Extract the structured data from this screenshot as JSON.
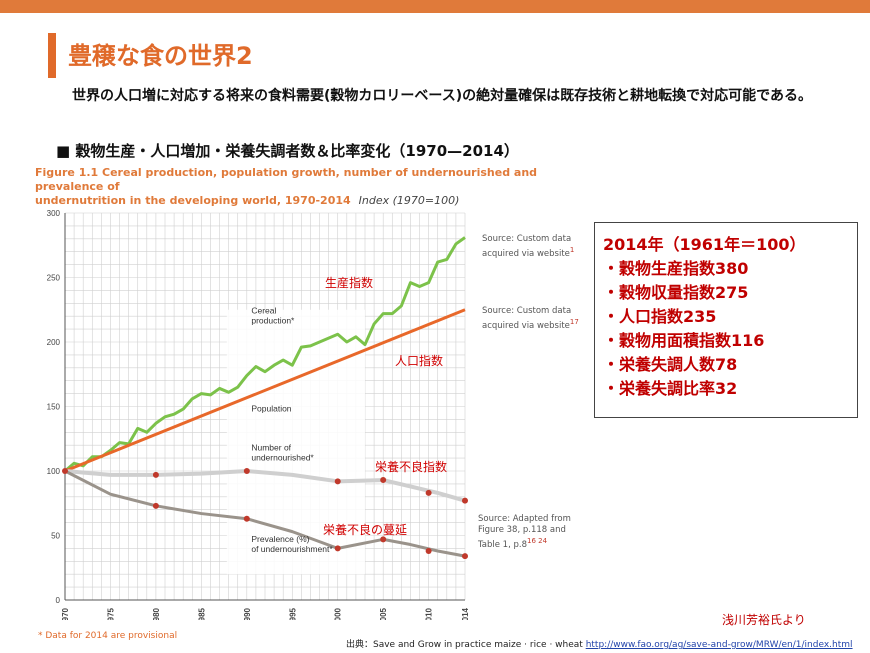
{
  "slide": {
    "title": "豊穣な食の世界2",
    "subtitle": "世界の人口増に対応する将来の食料需要(穀物カロリーベース)の絶対量確保は既存技術と耕地転換で対応可能である。",
    "section": "■ 穀物生産・人口増加・栄養失調者数＆比率変化（1970—2014）",
    "credit": "浅川芳裕氏より",
    "source_text": "出典：Save and Grow in practice maize · rice · wheat",
    "source_link": "http://www.fao.org/ag/save-and-grow/MRW/en/1/index.html"
  },
  "figure": {
    "title_line1": "Figure 1.1 Cereal production, population growth, number of undernourished and prevalence of",
    "title_line2": "undernutrition in the developing world, 1970-2014",
    "index_note": "Index (1970=100)",
    "footnote": "* Data for 2014 are provisional",
    "sources": [
      {
        "text": "Source: Custom data acquired via website",
        "sup": "1"
      },
      {
        "text": "Source: Custom data acquired via website",
        "sup": "17"
      },
      {
        "text": "Source: Adapted from Figure 38, p.118 and Table 1, p.8",
        "sup": "16 24"
      }
    ]
  },
  "jp_labels": {
    "production": "生産指数",
    "population": "人口指数",
    "undernourished": "栄養不良指数",
    "prevalence": "栄養不良の蔓延"
  },
  "summary_box": {
    "heading": "2014年（1961年＝100）",
    "items": [
      "・穀物生産指数380",
      "・穀物収量指数275",
      "・人口指数235",
      "・穀物用面積指数116",
      "・栄養失調人数78",
      "・栄養失調比率32"
    ]
  },
  "chart_data": {
    "type": "line",
    "title": "Cereal production, population growth, number of undernourished and prevalence of undernutrition in the developing world, 1970-2014",
    "ylabel": "Index (1970=100)",
    "xlim": [
      1970,
      2014
    ],
    "ylim": [
      0,
      300
    ],
    "x_ticks": [
      1970,
      1975,
      1980,
      1985,
      1990,
      1995,
      2000,
      2005,
      2010,
      2014
    ],
    "y_ticks": [
      0,
      50,
      100,
      150,
      200,
      250,
      300
    ],
    "grid": true,
    "series": [
      {
        "name": "Cereal production*",
        "color": "#7cc24a",
        "x": [
          1970,
          1971,
          1972,
          1973,
          1974,
          1975,
          1976,
          1977,
          1978,
          1979,
          1980,
          1981,
          1982,
          1983,
          1984,
          1985,
          1986,
          1987,
          1988,
          1989,
          1990,
          1991,
          1992,
          1993,
          1994,
          1995,
          1996,
          1997,
          1998,
          1999,
          2000,
          2001,
          2002,
          2003,
          2004,
          2005,
          2006,
          2007,
          2008,
          2009,
          2010,
          2011,
          2012,
          2013,
          2014
        ],
        "values": [
          100,
          106,
          104,
          111,
          111,
          116,
          122,
          121,
          133,
          130,
          137,
          142,
          144,
          148,
          156,
          160,
          159,
          164,
          161,
          165,
          174,
          181,
          177,
          182,
          186,
          182,
          196,
          197,
          200,
          203,
          206,
          200,
          204,
          198,
          214,
          222,
          222,
          228,
          246,
          243,
          246,
          262,
          264,
          276,
          281
        ]
      },
      {
        "name": "Population",
        "color": "#e8682a",
        "x": [
          1970,
          2014
        ],
        "values": [
          100,
          225
        ]
      },
      {
        "name": "Number of undernourished*",
        "color": "#cfcfcf",
        "x": [
          1970,
          1975,
          1980,
          1985,
          1990,
          1995,
          2000,
          2005,
          2008,
          2011,
          2014
        ],
        "values": [
          100,
          97,
          97,
          98,
          100,
          97,
          92,
          93,
          88,
          83,
          77
        ]
      },
      {
        "name": "Prevalence (%) of undernourishment*",
        "color": "#9a938b",
        "x": [
          1970,
          1975,
          1980,
          1985,
          1990,
          1995,
          2000,
          2005,
          2008,
          2011,
          2014
        ],
        "values": [
          100,
          82,
          73,
          67,
          63,
          53,
          40,
          47,
          43,
          38,
          34
        ]
      }
    ],
    "markers": [
      {
        "series": "Number of undernourished*",
        "x": [
          1970,
          1980,
          1990,
          2000,
          2005,
          2010,
          2014
        ],
        "values": [
          100,
          97,
          100,
          92,
          93,
          83,
          77
        ]
      },
      {
        "series": "Prevalence (%) of undernourishment*",
        "x": [
          1980,
          1990,
          2000,
          2005,
          2010,
          2014
        ],
        "values": [
          73,
          63,
          40,
          47,
          38,
          34
        ]
      }
    ],
    "legend": "inline labels"
  }
}
